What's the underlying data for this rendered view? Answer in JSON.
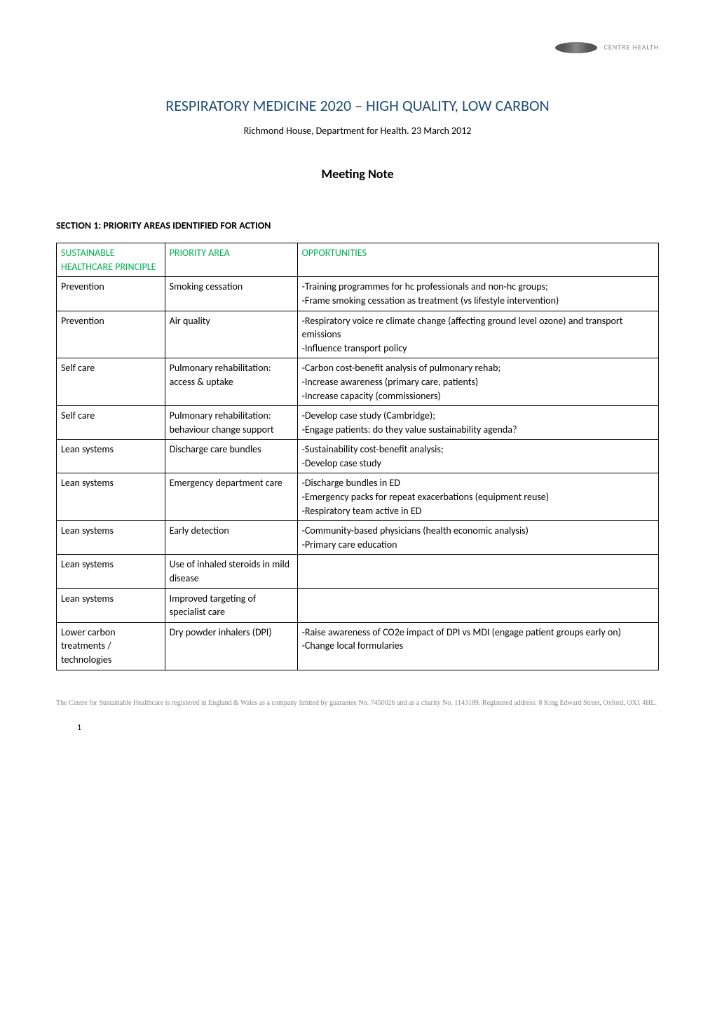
{
  "logo_text": "CENTRE\nHEALTH",
  "title": "RESPIRATORY MEDICINE 2020 – HIGH QUALITY, LOW CARBON",
  "subtitle": "Richmond House, Department for Health. 23 March 2012",
  "heading": "Meeting Note",
  "section_heading": "SECTION 1: PRIORITY AREAS IDENTIFIED FOR ACTION",
  "table": {
    "columns": [
      "SUSTAINABLE HEALTHCARE PRINCIPLE",
      "PRIORITY AREA",
      "OPPORTUNITIES"
    ],
    "header_color": "#00b050",
    "border_color": "#000000",
    "col_widths": [
      "18%",
      "22%",
      "60%"
    ],
    "rows": [
      [
        "Prevention",
        "Smoking cessation",
        "-Training programmes for hc professionals and non-hc groups;\n-Frame smoking cessation as treatment (vs lifestyle intervention)"
      ],
      [
        "Prevention",
        "Air quality",
        "-Respiratory voice re climate change (affecting ground level ozone) and transport emissions\n-Influence transport policy"
      ],
      [
        "Self care",
        "Pulmonary rehabilitation: access & uptake",
        "-Carbon cost-benefit analysis of pulmonary rehab;\n-Increase awareness (primary care, patients)\n-Increase capacity (commissioners)"
      ],
      [
        "Self care",
        "Pulmonary rehabilitation: behaviour change support",
        "-Develop case study (Cambridge);\n-Engage patients: do they value sustainability agenda?"
      ],
      [
        "Lean systems",
        "Discharge care bundles",
        "-Sustainability cost-benefit analysis;\n-Develop case study"
      ],
      [
        "Lean systems",
        "Emergency department care",
        "-Discharge bundles in ED\n-Emergency packs for repeat exacerbations (equipment reuse)\n-Respiratory team active in ED"
      ],
      [
        "Lean systems",
        "Early detection",
        "-Community-based physicians (health economic analysis)\n-Primary care education"
      ],
      [
        "Lean systems",
        "Use of inhaled steroids in mild disease",
        ""
      ],
      [
        "Lean systems",
        "Improved targeting of specialist care",
        ""
      ],
      [
        "Lower carbon treatments / technologies",
        "Dry powder inhalers (DPI)",
        "-Raise awareness of CO2e impact of DPI vs MDI (engage patient groups early on)\n-Change local formularies"
      ]
    ]
  },
  "footer": "The Centre for Sustainable Healthcare is registered in England & Wales as a company limited by guarantee No. 7450026 and as a charity No. 1143189. Registered address: 8 King Edward Street, Oxford, OX1 4HL.",
  "page_number": "1",
  "styles": {
    "title_color": "#1f4e79",
    "title_fontsize": 22,
    "subtitle_fontsize": 14,
    "heading_fontsize": 18,
    "section_heading_fontsize": 14,
    "body_fontsize": 14,
    "footer_fontsize": 10,
    "footer_color": "#888888",
    "background_color": "#ffffff",
    "text_color": "#000000"
  }
}
